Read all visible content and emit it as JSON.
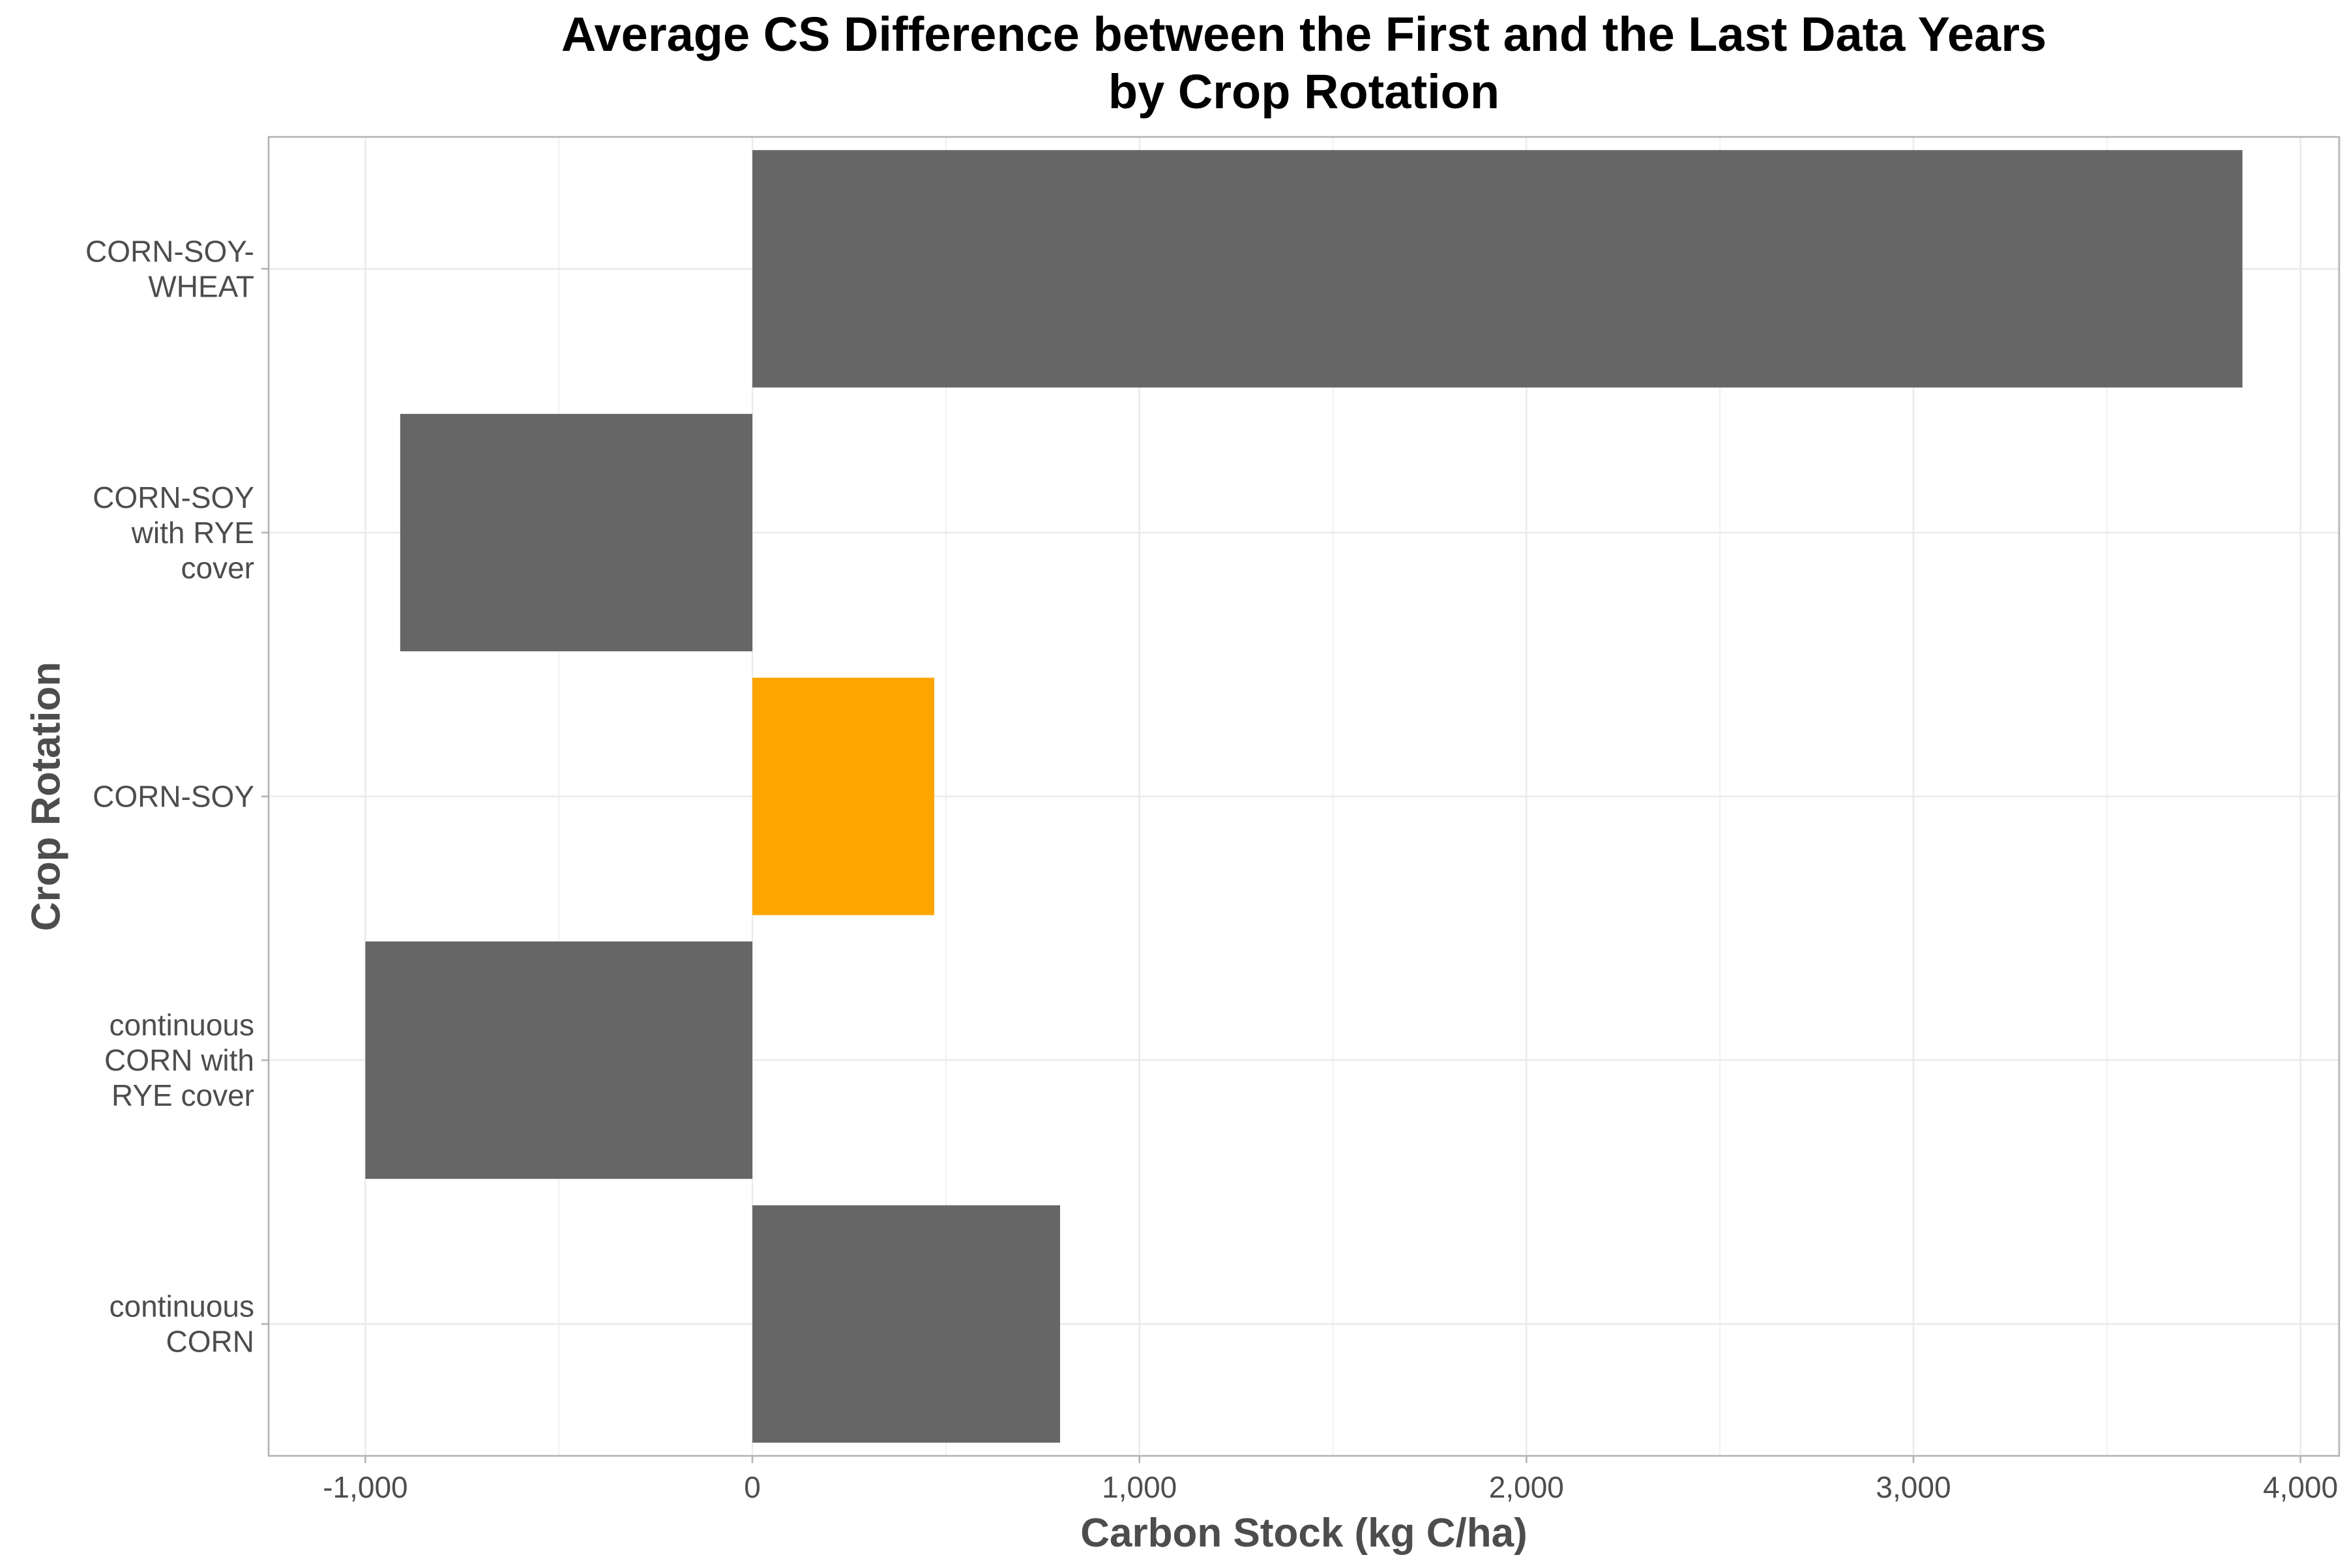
{
  "chart_data": {
    "type": "bar",
    "orientation": "horizontal",
    "title_lines": [
      "Average CS Difference between the First and the Last Data Years",
      "by Crop Rotation"
    ],
    "xlabel": "Carbon Stock (kg C/ha)",
    "ylabel": "Crop Rotation",
    "xlim": [
      -1250,
      4100
    ],
    "x_ticks": [
      -1000,
      0,
      1000,
      2000,
      3000,
      4000
    ],
    "x_tick_labels": [
      "-1,000",
      "0",
      "1,000",
      "2,000",
      "3,000",
      "4,000"
    ],
    "grid": true,
    "legend": "none",
    "categories": [
      {
        "lines": [
          "CORN-SOY-",
          "WHEAT"
        ]
      },
      {
        "lines": [
          "CORN-SOY",
          "with RYE",
          "cover"
        ]
      },
      {
        "lines": [
          "CORN-SOY"
        ]
      },
      {
        "lines": [
          "continuous",
          "CORN with",
          "RYE cover"
        ]
      },
      {
        "lines": [
          "continuous",
          "CORN"
        ]
      }
    ],
    "values": [
      3850,
      -910,
      470,
      -1000,
      795
    ],
    "colors": [
      "#666666",
      "#666666",
      "#ffa500",
      "#666666",
      "#666666"
    ]
  }
}
